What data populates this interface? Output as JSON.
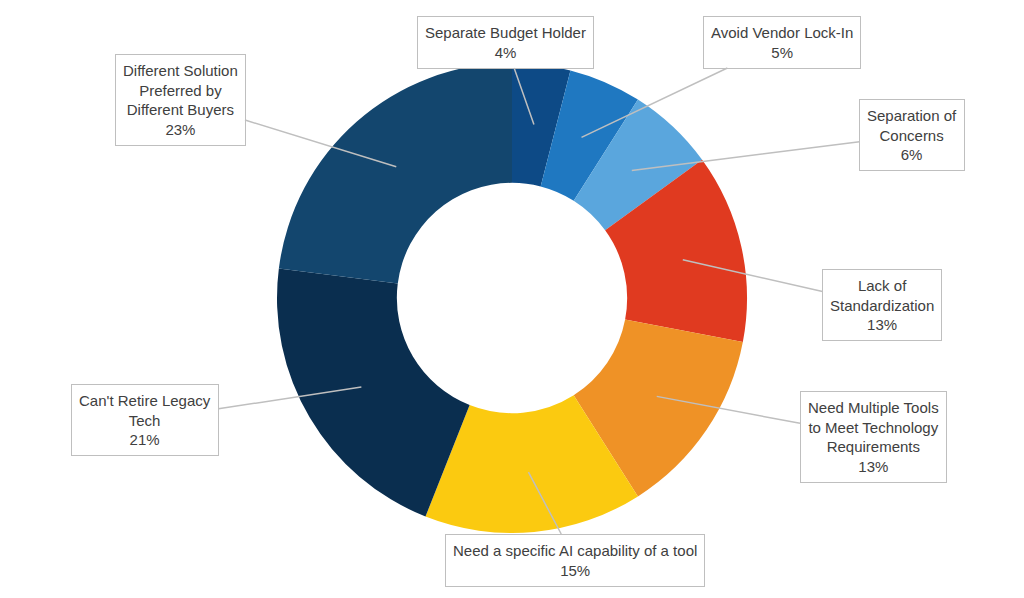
{
  "chart_data": {
    "type": "donut",
    "categories": [
      "Separate Budget Holder",
      "Avoid Vendor Lock-In",
      "Separation of Concerns",
      "Lack of Standardization",
      "Need Multiple Tools to Meet Technology Requirements",
      "Need a specific AI capability of a tool",
      "Can't Retire Legacy Tech",
      "Different Solution Preferred by Different Buyers"
    ],
    "values": [
      4,
      5,
      6,
      13,
      13,
      15,
      21,
      23
    ],
    "value_labels": [
      "4%",
      "5%",
      "6%",
      "13%",
      "13%",
      "15%",
      "21%",
      "23%"
    ],
    "colors": [
      "#0d4a86",
      "#1f78c1",
      "#5aa6dd",
      "#e03a20",
      "#ef9226",
      "#fbca10",
      "#0a2e4f",
      "#13466e"
    ],
    "data_labels": true
  }
}
